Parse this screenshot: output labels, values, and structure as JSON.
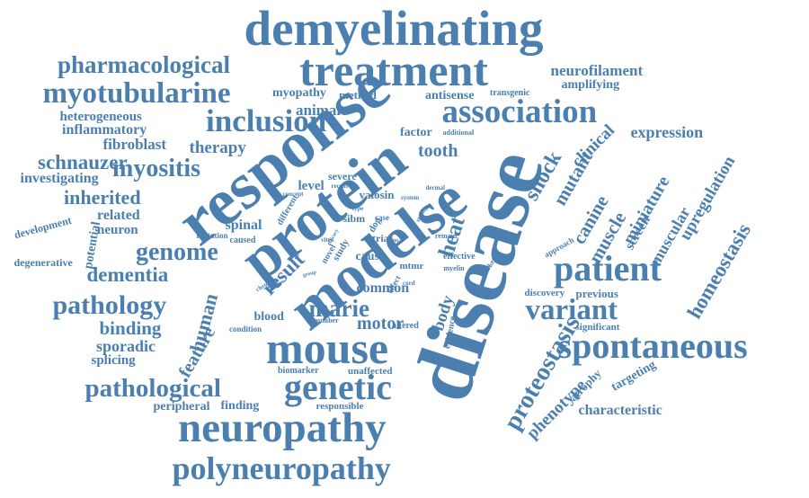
{
  "color": "#4a7fb0",
  "words": [
    {
      "text": "demyelinating",
      "rotation": 0
    },
    {
      "text": "treatment",
      "rotation": 0
    },
    {
      "text": "pharmacological",
      "rotation": 0
    },
    {
      "text": "myotubularine",
      "rotation": 0
    },
    {
      "text": "neurofilament",
      "rotation": 0
    },
    {
      "text": "amplifying",
      "rotation": 0
    },
    {
      "text": "association",
      "rotation": 0
    },
    {
      "text": "inclusion",
      "rotation": 0
    },
    {
      "text": "heterogeneous",
      "rotation": 0
    },
    {
      "text": "inflammatory",
      "rotation": 0
    },
    {
      "text": "fibroblast",
      "rotation": 0
    },
    {
      "text": "therapy",
      "rotation": 0
    },
    {
      "text": "schnauzer",
      "rotation": 0
    },
    {
      "text": "myositis",
      "rotation": 0
    },
    {
      "text": "investigating",
      "rotation": 0
    },
    {
      "text": "inherited",
      "rotation": 0
    },
    {
      "text": "myopathy",
      "rotation": 0
    },
    {
      "text": "method",
      "rotation": 0
    },
    {
      "text": "animal",
      "rotation": 0
    },
    {
      "text": "antisense",
      "rotation": 0
    },
    {
      "text": "transgenic",
      "rotation": 0
    },
    {
      "text": "factor",
      "rotation": 0
    },
    {
      "text": "additional",
      "rotation": 0
    },
    {
      "text": "tooth",
      "rotation": 0
    },
    {
      "text": "expression",
      "rotation": 0
    },
    {
      "text": "clinical",
      "rotation": -45
    },
    {
      "text": "response",
      "rotation": -38
    },
    {
      "text": "protein",
      "rotation": -38
    },
    {
      "text": "modelse",
      "rotation": -38
    },
    {
      "text": "disease",
      "rotation": -72
    },
    {
      "text": "shock",
      "rotation": -60
    },
    {
      "text": "mutant",
      "rotation": -60
    },
    {
      "text": "canine",
      "rotation": -60
    },
    {
      "text": "muscle",
      "rotation": -60
    },
    {
      "text": "miniature",
      "rotation": -60
    },
    {
      "text": "screen",
      "rotation": -60
    },
    {
      "text": "muscular",
      "rotation": -60
    },
    {
      "text": "upregulation",
      "rotation": -60
    },
    {
      "text": "homeostasis",
      "rotation": -60
    },
    {
      "text": "patient",
      "rotation": 0
    },
    {
      "text": "variant",
      "rotation": 0
    },
    {
      "text": "spontaneous",
      "rotation": 0
    },
    {
      "text": "mouse",
      "rotation": 0
    },
    {
      "text": "genome",
      "rotation": 0
    },
    {
      "text": "dementia",
      "rotation": 0
    },
    {
      "text": "pathology",
      "rotation": 0
    },
    {
      "text": "binding",
      "rotation": 0
    },
    {
      "text": "sporadic",
      "rotation": 0
    },
    {
      "text": "splicing",
      "rotation": 0
    },
    {
      "text": "pathological",
      "rotation": 0
    },
    {
      "text": "genetic",
      "rotation": 0
    },
    {
      "text": "neuropathy",
      "rotation": 0
    },
    {
      "text": "polyneuropathy",
      "rotation": 0
    },
    {
      "text": "peripheral",
      "rotation": 0
    },
    {
      "text": "finding",
      "rotation": 0
    },
    {
      "text": "responsible",
      "rotation": 0
    },
    {
      "text": "proteostasis",
      "rotation": -60
    },
    {
      "text": "phenotype",
      "rotation": -45
    },
    {
      "text": "atrophy",
      "rotation": -45
    },
    {
      "text": "targeting",
      "rotation": -30
    },
    {
      "text": "characteristic",
      "rotation": 0
    },
    {
      "text": "significant",
      "rotation": 0
    },
    {
      "text": "discovery",
      "rotation": 0
    },
    {
      "text": "previous",
      "rotation": 0
    },
    {
      "text": "human",
      "rotation": -75
    },
    {
      "text": "feature",
      "rotation": -60
    },
    {
      "text": "marie",
      "rotation": 0
    },
    {
      "text": "motor",
      "rotation": 0
    },
    {
      "text": "blood",
      "rotation": 0
    },
    {
      "text": "common",
      "rotation": 0
    },
    {
      "text": "result",
      "rotation": -45
    },
    {
      "text": "spinal",
      "rotation": 0
    },
    {
      "text": "neuron",
      "rotation": 0
    },
    {
      "text": "related",
      "rotation": 0
    },
    {
      "text": "level",
      "rotation": 0
    },
    {
      "text": "severe",
      "rotation": 0
    },
    {
      "text": "heat",
      "rotation": -72
    },
    {
      "text": "body",
      "rotation": -72
    },
    {
      "text": "valosin",
      "rotation": 0
    },
    {
      "text": "trial",
      "rotation": 0
    },
    {
      "text": "cause",
      "rotation": 0
    },
    {
      "text": "mtmr",
      "rotation": 0
    },
    {
      "text": "effective",
      "rotation": 0
    },
    {
      "text": "myelin",
      "rotation": 0
    },
    {
      "text": "development",
      "rotation": -15
    },
    {
      "text": "potential",
      "rotation": -80
    },
    {
      "text": "degenerative",
      "rotation": 0
    },
    {
      "text": "mutation",
      "rotation": 0
    },
    {
      "text": "caused",
      "rotation": 0
    },
    {
      "text": "efficacy",
      "rotation": -60
    },
    {
      "text": "condition",
      "rotation": 0
    },
    {
      "text": "number",
      "rotation": 0
    },
    {
      "text": "biomarker",
      "rotation": 0
    },
    {
      "text": "unaffected",
      "rotation": 0
    },
    {
      "text": "altered",
      "rotation": 0
    },
    {
      "text": "evidence",
      "rotation": -80
    },
    {
      "text": "approach",
      "rotation": -30
    },
    {
      "text": "sibm",
      "rotation": 0
    },
    {
      "text": "case",
      "rotation": 0
    },
    {
      "text": "dog",
      "rotation": -60
    },
    {
      "text": "study",
      "rotation": -60
    },
    {
      "text": "novel",
      "rotation": -60
    },
    {
      "text": "different",
      "rotation": -60
    },
    {
      "text": "concept",
      "rotation": 0
    },
    {
      "text": "recent",
      "rotation": 0
    },
    {
      "text": "dermal",
      "rotation": 0
    },
    {
      "text": "system",
      "rotation": 0
    },
    {
      "text": "type",
      "rotation": 0
    },
    {
      "text": "strong",
      "rotation": -60
    },
    {
      "text": "remain",
      "rotation": 0
    },
    {
      "text": "vitro",
      "rotation": 0
    },
    {
      "text": "form",
      "rotation": 0
    },
    {
      "text": "cord",
      "rotation": 0
    },
    {
      "text": "effect",
      "rotation": -60
    },
    {
      "text": "chronic",
      "rotation": -30
    },
    {
      "text": "marker",
      "rotation": -60
    },
    {
      "text": "group",
      "rotation": -15
    }
  ]
}
